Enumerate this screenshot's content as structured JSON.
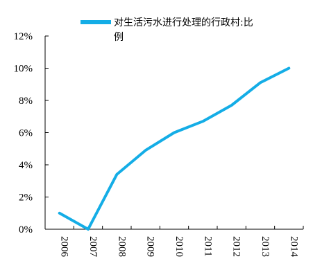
{
  "chart_data": {
    "type": "line",
    "x": [
      "2006",
      "2007",
      "2008",
      "2009",
      "2010",
      "2011",
      "2012",
      "2013",
      "2014"
    ],
    "series": [
      {
        "name": "对生活污水进行处理的行政村:比例",
        "values": [
          1.0,
          0.0,
          3.4,
          4.9,
          6.0,
          6.7,
          7.7,
          9.1,
          10.0
        ]
      }
    ],
    "ylim": [
      0,
      12
    ],
    "yticks": [
      "0%",
      "2%",
      "4%",
      "6%",
      "8%",
      "10%",
      "12%"
    ],
    "legend": {
      "line1": "对生活污水进行处理的行政村:比",
      "line2": "例",
      "position": "top"
    },
    "grid": false,
    "color": "#14ADE6"
  }
}
